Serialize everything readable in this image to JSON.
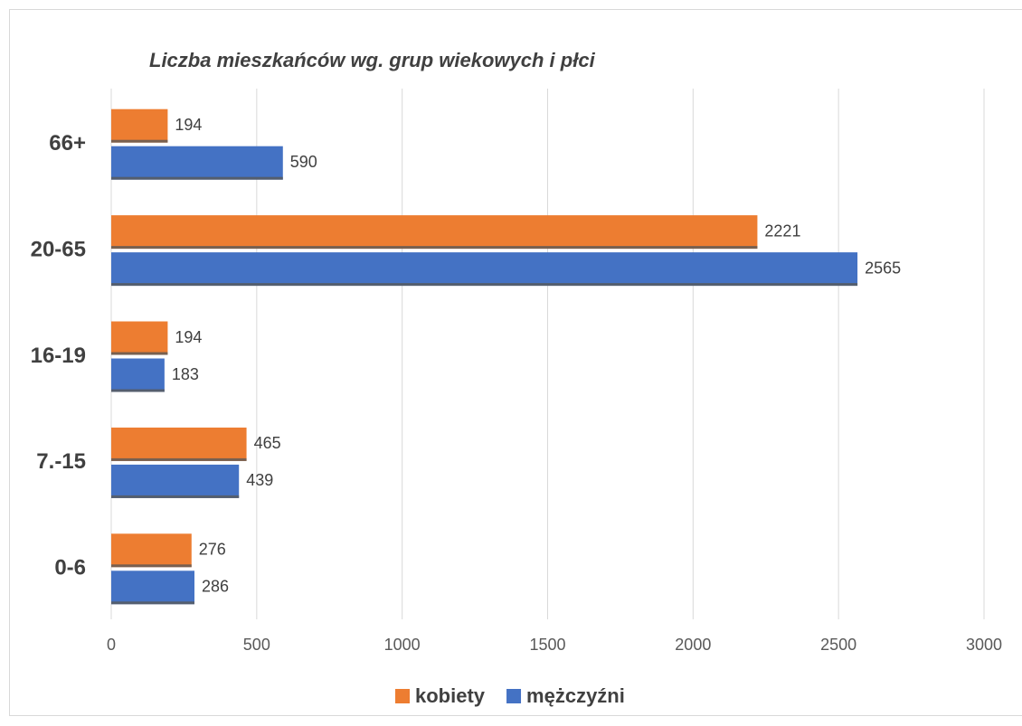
{
  "chart_data": {
    "type": "bar",
    "orientation": "horizontal",
    "title": "Liczba mieszkańców wg. grup wiekowych i płci",
    "categories": [
      "0-6",
      "7.-15",
      "16-19",
      "20-65",
      "66+"
    ],
    "series": [
      {
        "name": "kobiety",
        "color": "#ed7d31",
        "values": [
          276,
          465,
          194,
          2221,
          194
        ]
      },
      {
        "name": "mężczyźni",
        "color": "#4472c4",
        "values": [
          286,
          439,
          183,
          2565,
          590
        ]
      }
    ],
    "xlim": [
      0,
      3000
    ],
    "xticks": [
      0,
      500,
      1000,
      1500,
      2000,
      2500,
      3000
    ],
    "grid": true,
    "legend": "bottom"
  }
}
